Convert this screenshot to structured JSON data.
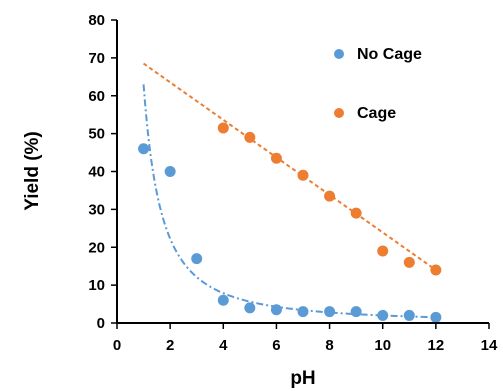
{
  "chart_data": {
    "type": "scatter",
    "xlabel": "pH",
    "ylabel": "Yield (%)",
    "xlim": [
      0,
      14
    ],
    "ylim": [
      0,
      80
    ],
    "xticks": [
      0,
      2,
      4,
      6,
      8,
      10,
      12,
      14
    ],
    "yticks": [
      0,
      10,
      20,
      30,
      40,
      50,
      60,
      70,
      80
    ],
    "grid": false,
    "legend_position": "top-right",
    "series": [
      {
        "name": "No Cage",
        "color": "#5b9bd5",
        "x": [
          1,
          2,
          3,
          4,
          5,
          6,
          7,
          8,
          9,
          10,
          11,
          12
        ],
        "y": [
          46,
          40,
          17,
          6,
          4,
          3.5,
          3,
          3,
          3,
          2,
          2,
          1.5
        ],
        "trendline": {
          "type": "power",
          "style": "dash-dot",
          "a": 63,
          "b": -1.5
        }
      },
      {
        "name": "Cage",
        "color": "#ed7d31",
        "x": [
          4,
          5,
          6,
          7,
          8,
          9,
          10,
          11,
          12
        ],
        "y": [
          51.5,
          49,
          43.5,
          39,
          33.5,
          29,
          19,
          16,
          14
        ],
        "trendline": {
          "type": "linear",
          "style": "dashed",
          "x_range": [
            1,
            12
          ],
          "y_range": [
            68.5,
            14
          ]
        }
      }
    ]
  }
}
